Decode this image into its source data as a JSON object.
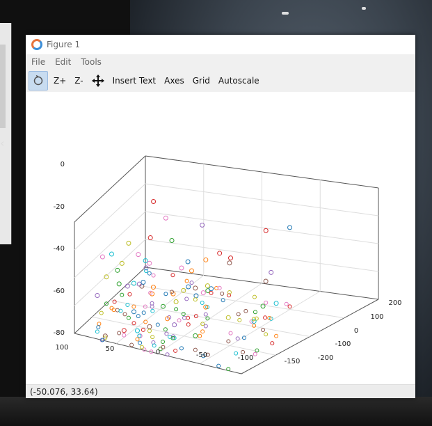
{
  "window": {
    "title": "Figure 1",
    "menu": [
      "File",
      "Edit",
      "Tools"
    ],
    "toolbar": {
      "zoom_in": "Z+",
      "zoom_out": "Z-",
      "insert_text": "Insert Text",
      "axes": "Axes",
      "grid": "Grid",
      "autoscale": "Autoscale"
    },
    "status": "(-50.076, 33.64)"
  },
  "chart_data": {
    "type": "scatter",
    "title": "",
    "xlabel": "",
    "ylabel": "",
    "zlabel": "",
    "x_ticks": [
      "100",
      "50",
      "0",
      "-50",
      "-100",
      "-150"
    ],
    "y_ticks": [
      "200",
      "100",
      "0",
      "-100",
      "-200"
    ],
    "z_ticks": [
      "0",
      "-20",
      "-40",
      "-60",
      "-80"
    ],
    "zlim": [
      -80,
      0
    ],
    "grid": true,
    "colormap": [
      "#440154",
      "#3b528b",
      "#21918c",
      "#5ec962",
      "#fde725"
    ]
  }
}
